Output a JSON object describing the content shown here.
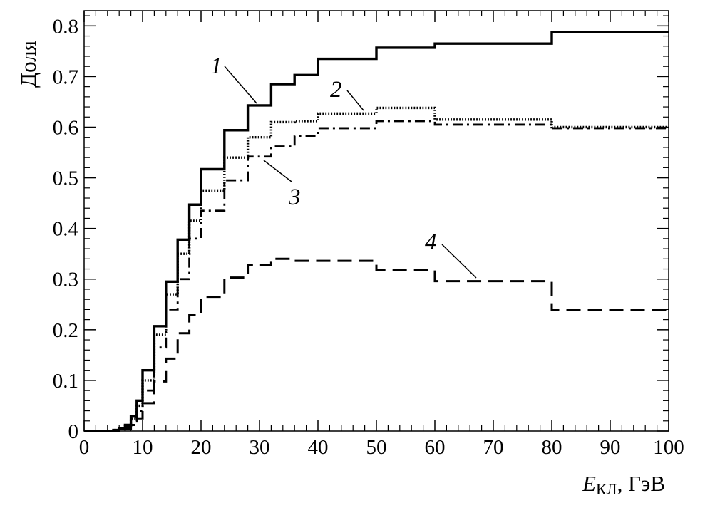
{
  "chart_data": {
    "type": "line",
    "title": "",
    "xlabel_main": "E",
    "xlabel_sub": "КЛ",
    "xlabel_unit": ", ГэВ",
    "ylabel": "Доля",
    "xlim": [
      0,
      100
    ],
    "ylim": [
      0,
      0.83
    ],
    "x_ticks": [
      0,
      10,
      20,
      30,
      40,
      50,
      60,
      70,
      80,
      90,
      100
    ],
    "x_tick_labels": [
      "0",
      "10",
      "20",
      "30",
      "40",
      "50",
      "60",
      "70",
      "80",
      "90",
      "100"
    ],
    "y_ticks": [
      0,
      0.1,
      0.2,
      0.3,
      0.4,
      0.5,
      0.6,
      0.7,
      0.8
    ],
    "y_tick_labels": [
      "0",
      "0.1",
      "0.2",
      "0.3",
      "0.4",
      "0.5",
      "0.6",
      "0.7",
      "0.8"
    ],
    "grid": false,
    "step": true,
    "bin_edges": [
      0,
      1,
      2,
      3,
      4,
      5,
      6,
      7,
      8,
      9,
      10,
      12,
      14,
      16,
      18,
      20,
      24,
      28,
      32,
      36,
      40,
      50,
      60,
      80,
      100
    ],
    "series": [
      {
        "name": "1",
        "line_style": "solid",
        "values": [
          0,
          0,
          0,
          0,
          0,
          0.002,
          0.005,
          0.012,
          0.03,
          0.06,
          0.12,
          0.207,
          0.295,
          0.378,
          0.447,
          0.517,
          0.594,
          0.643,
          0.685,
          0.703,
          0.735,
          0.757,
          0.765,
          0.788
        ]
      },
      {
        "name": "2",
        "line_style": "dotted",
        "values": [
          0,
          0,
          0,
          0,
          0,
          0.002,
          0.004,
          0.01,
          0.025,
          0.05,
          0.1,
          0.19,
          0.27,
          0.35,
          0.415,
          0.475,
          0.54,
          0.58,
          0.61,
          0.612,
          0.627,
          0.638,
          0.615,
          0.6
        ]
      },
      {
        "name": "3",
        "line_style": "dashdot",
        "values": [
          0,
          0,
          0,
          0,
          0,
          0.001,
          0.003,
          0.008,
          0.02,
          0.04,
          0.08,
          0.165,
          0.24,
          0.3,
          0.38,
          0.435,
          0.495,
          0.542,
          0.562,
          0.583,
          0.598,
          0.612,
          0.605,
          0.598
        ]
      },
      {
        "name": "4",
        "line_style": "dashed",
        "values": [
          0,
          0,
          0,
          0,
          0,
          0,
          0.002,
          0.005,
          0.012,
          0.025,
          0.055,
          0.098,
          0.143,
          0.193,
          0.23,
          0.265,
          0.303,
          0.328,
          0.34,
          0.336,
          0.336,
          0.318,
          0.296,
          0.239
        ]
      }
    ],
    "curve_labels": [
      "1",
      "2",
      "3",
      "4"
    ]
  }
}
